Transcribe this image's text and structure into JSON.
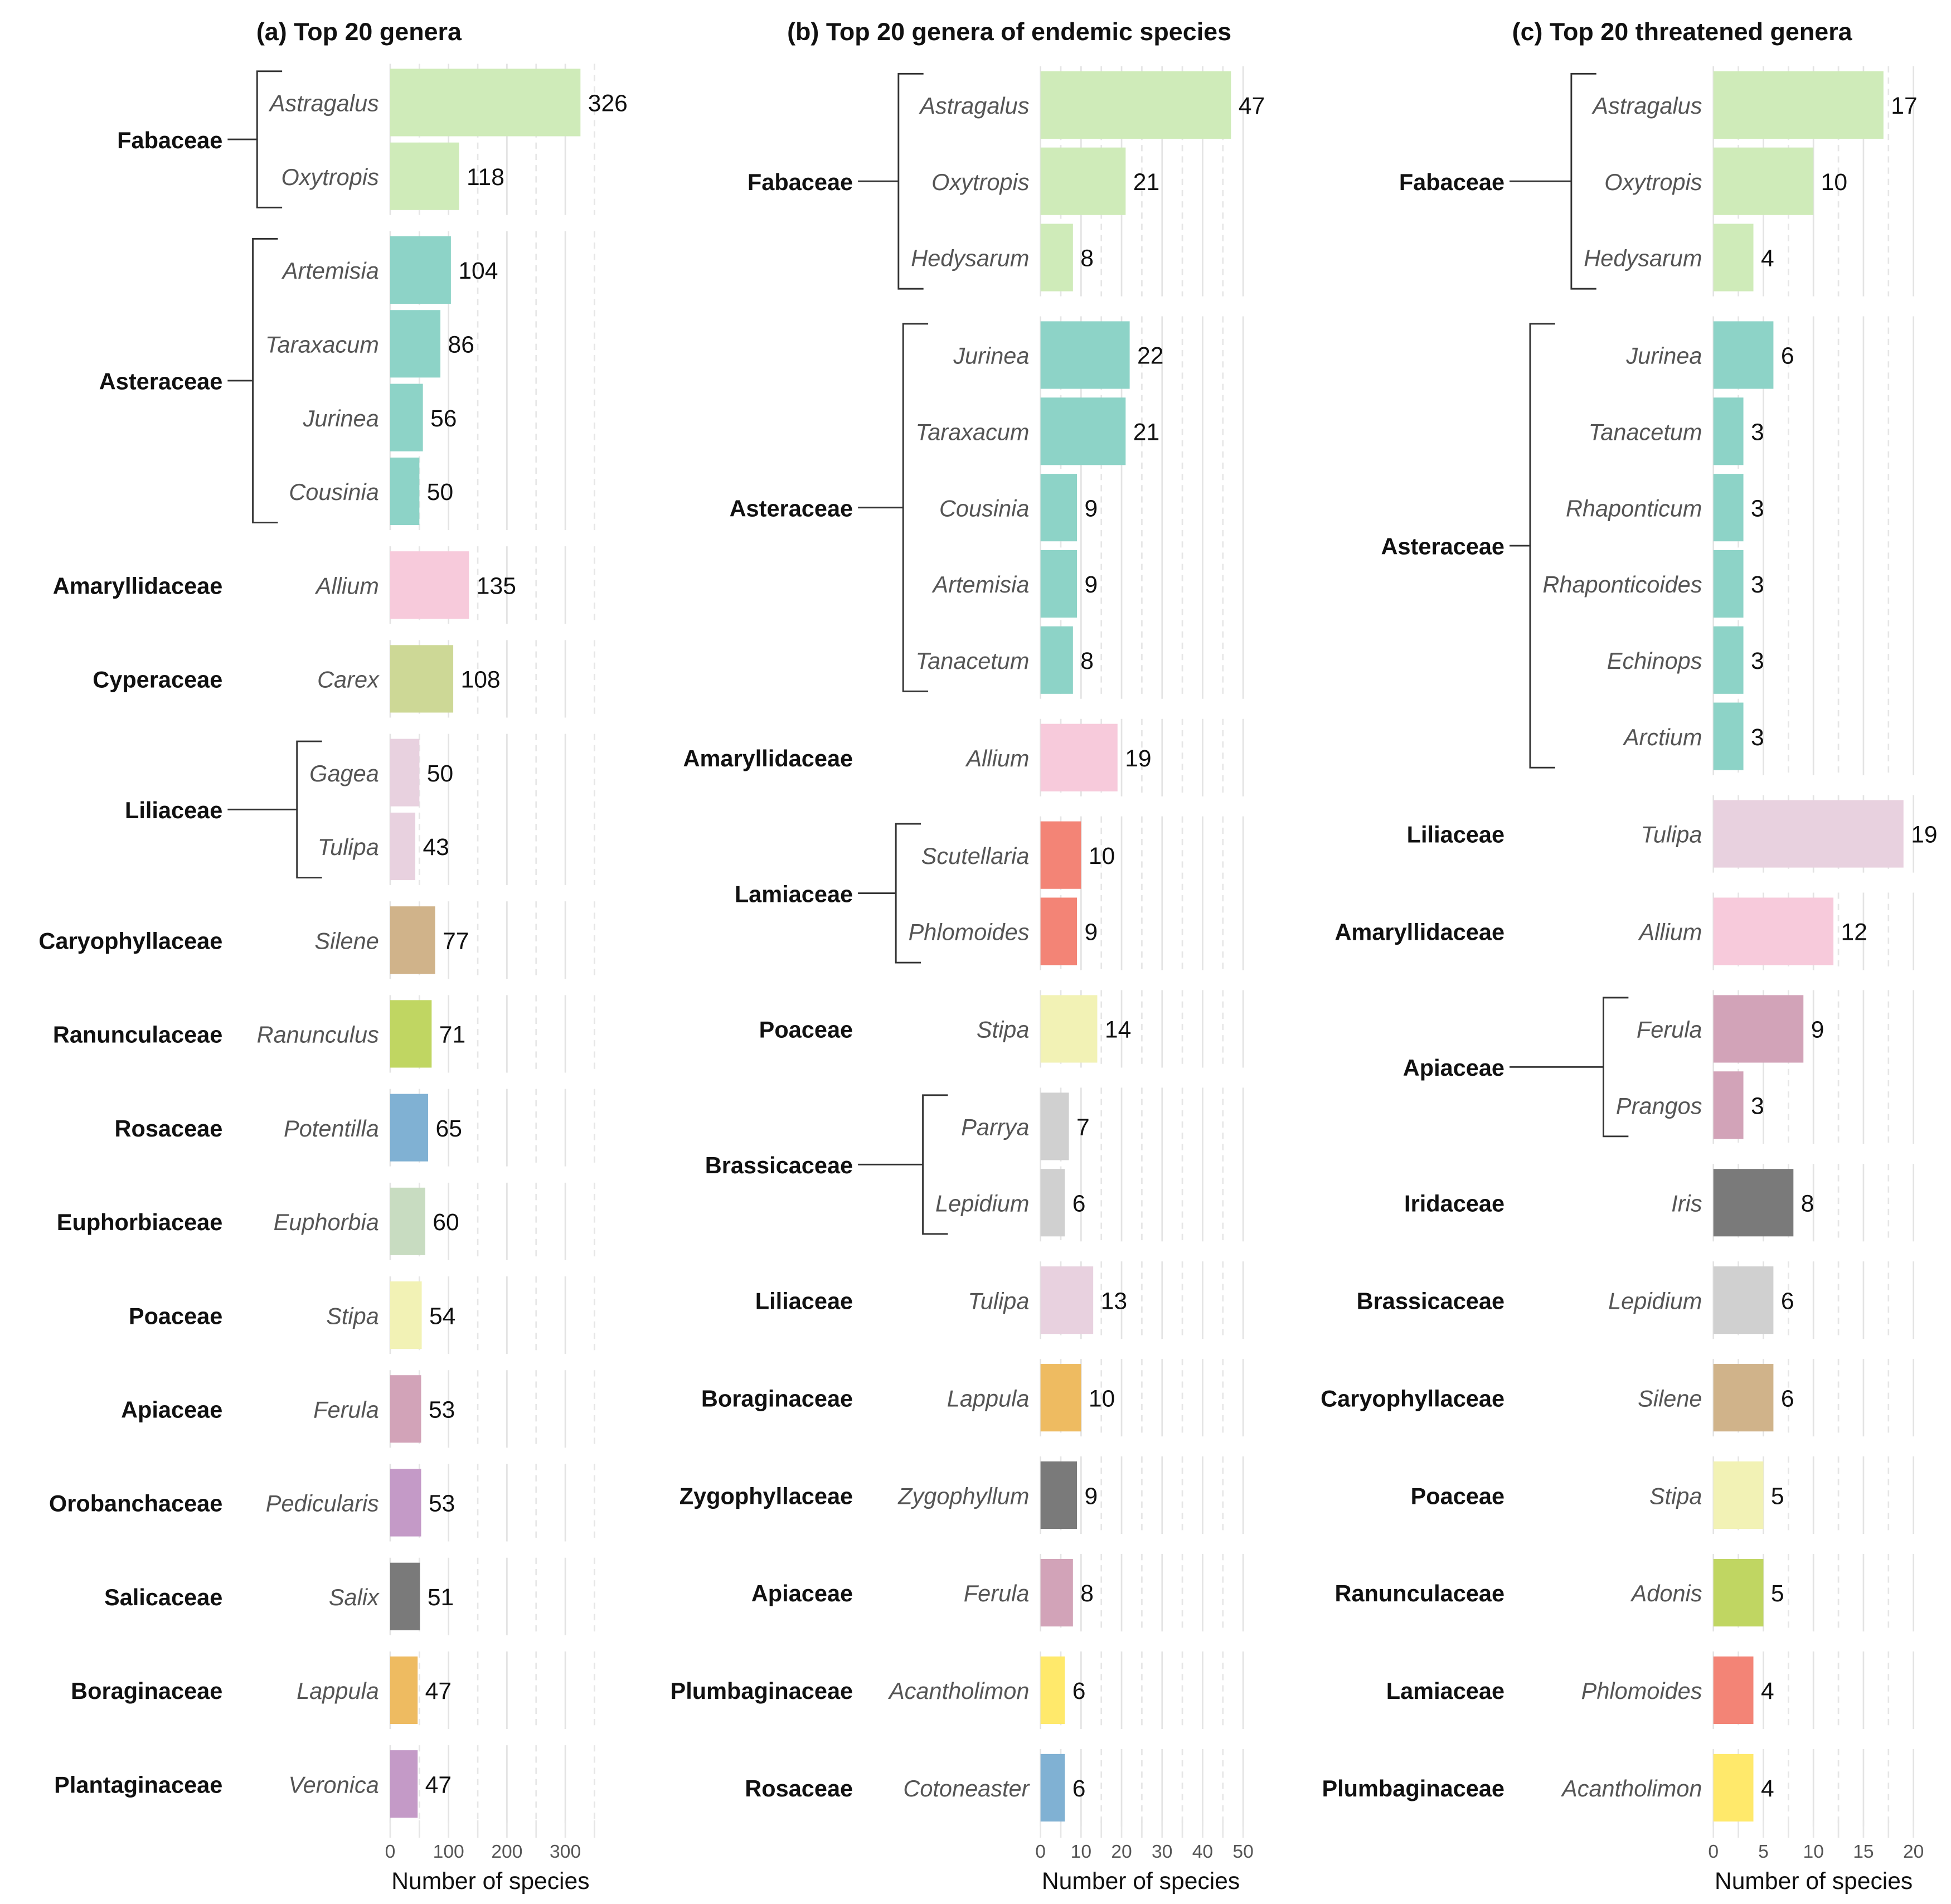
{
  "palette": {
    "Fabaceae": "#CFEBB9",
    "Asteraceae": "#8DD3C7",
    "Amaryllidaceae": "#F7CADB",
    "Cyperaceae": "#CDD896",
    "Liliaceae": "#E8D1DF",
    "Caryophyllaceae": "#D0B38A",
    "Ranunculaceae": "#C0D662",
    "Rosaceae": "#80B1D3",
    "Euphorbiaceae": "#C8DCC1",
    "Poaceae": "#F2F2B5",
    "Apiaceae": "#D2A3B8",
    "Orobanchaceae": "#C49AC7",
    "Salicaceae": "#7A7A7A",
    "Boraginaceae": "#EEBB61",
    "Plantaginaceae": "#C49AC7",
    "Lamiaceae": "#F38476",
    "Brassicaceae": "#D0D0D0",
    "Zygophyllaceae": "#7A7A7A",
    "Plumbaginaceae": "#FFE96B",
    "Iridaceae": "#7A7A7A"
  },
  "chart_data": [
    {
      "type": "bar",
      "title": "(a) Top 20 genera",
      "xlabel": "Number of species",
      "xticks": [
        0,
        100,
        200,
        300
      ],
      "minor_step": 50,
      "xlim": [
        0,
        350
      ],
      "groups": [
        {
          "family": "Fabaceae",
          "genera": [
            {
              "name": "Astragalus",
              "value": 326
            },
            {
              "name": "Oxytropis",
              "value": 118
            }
          ]
        },
        {
          "family": "Asteraceae",
          "genera": [
            {
              "name": "Artemisia",
              "value": 104
            },
            {
              "name": "Taraxacum",
              "value": 86
            },
            {
              "name": "Jurinea",
              "value": 56
            },
            {
              "name": "Cousinia",
              "value": 50
            }
          ]
        },
        {
          "family": "Amaryllidaceae",
          "genera": [
            {
              "name": "Allium",
              "value": 135
            }
          ]
        },
        {
          "family": "Cyperaceae",
          "genera": [
            {
              "name": "Carex",
              "value": 108
            }
          ]
        },
        {
          "family": "Liliaceae",
          "genera": [
            {
              "name": "Gagea",
              "value": 50
            },
            {
              "name": "Tulipa",
              "value": 43
            }
          ]
        },
        {
          "family": "Caryophyllaceae",
          "genera": [
            {
              "name": "Silene",
              "value": 77
            }
          ]
        },
        {
          "family": "Ranunculaceae",
          "genera": [
            {
              "name": "Ranunculus",
              "value": 71
            }
          ]
        },
        {
          "family": "Rosaceae",
          "genera": [
            {
              "name": "Potentilla",
              "value": 65
            }
          ]
        },
        {
          "family": "Euphorbiaceae",
          "genera": [
            {
              "name": "Euphorbia",
              "value": 60
            }
          ]
        },
        {
          "family": "Poaceae",
          "genera": [
            {
              "name": "Stipa",
              "value": 54
            }
          ]
        },
        {
          "family": "Apiaceae",
          "genera": [
            {
              "name": "Ferula",
              "value": 53
            }
          ]
        },
        {
          "family": "Orobanchaceae",
          "genera": [
            {
              "name": "Pedicularis",
              "value": 53
            }
          ]
        },
        {
          "family": "Salicaceae",
          "genera": [
            {
              "name": "Salix",
              "value": 51
            }
          ]
        },
        {
          "family": "Boraginaceae",
          "genera": [
            {
              "name": "Lappula",
              "value": 47
            }
          ]
        },
        {
          "family": "Plantaginaceae",
          "genera": [
            {
              "name": "Veronica",
              "value": 47
            }
          ]
        }
      ]
    },
    {
      "type": "bar",
      "title": "(b) Top 20 genera of endemic species",
      "xlabel": "Number of species",
      "xticks": [
        0,
        10,
        20,
        30,
        40,
        50
      ],
      "minor_step": 5,
      "xlim": [
        0,
        50
      ],
      "groups": [
        {
          "family": "Fabaceae",
          "genera": [
            {
              "name": "Astragalus",
              "value": 47
            },
            {
              "name": "Oxytropis",
              "value": 21
            },
            {
              "name": "Hedysarum",
              "value": 8
            }
          ]
        },
        {
          "family": "Asteraceae",
          "genera": [
            {
              "name": "Jurinea",
              "value": 22
            },
            {
              "name": "Taraxacum",
              "value": 21
            },
            {
              "name": "Cousinia",
              "value": 9
            },
            {
              "name": "Artemisia",
              "value": 9
            },
            {
              "name": "Tanacetum",
              "value": 8
            }
          ]
        },
        {
          "family": "Amaryllidaceae",
          "genera": [
            {
              "name": "Allium",
              "value": 19
            }
          ]
        },
        {
          "family": "Lamiaceae",
          "genera": [
            {
              "name": "Scutellaria",
              "value": 10
            },
            {
              "name": "Phlomoides",
              "value": 9
            }
          ]
        },
        {
          "family": "Poaceae",
          "genera": [
            {
              "name": "Stipa",
              "value": 14
            }
          ]
        },
        {
          "family": "Brassicaceae",
          "genera": [
            {
              "name": "Parrya",
              "value": 7
            },
            {
              "name": "Lepidium",
              "value": 6
            }
          ]
        },
        {
          "family": "Liliaceae",
          "genera": [
            {
              "name": "Tulipa",
              "value": 13
            }
          ]
        },
        {
          "family": "Boraginaceae",
          "genera": [
            {
              "name": "Lappula",
              "value": 10
            }
          ]
        },
        {
          "family": "Zygophyllaceae",
          "genera": [
            {
              "name": "Zygophyllum",
              "value": 9
            }
          ]
        },
        {
          "family": "Apiaceae",
          "genera": [
            {
              "name": "Ferula",
              "value": 8
            }
          ]
        },
        {
          "family": "Plumbaginaceae",
          "genera": [
            {
              "name": "Acantholimon",
              "value": 6
            }
          ]
        },
        {
          "family": "Rosaceae",
          "genera": [
            {
              "name": "Cotoneaster",
              "value": 6
            }
          ]
        }
      ]
    },
    {
      "type": "bar",
      "title": "(c) Top 20 threatened genera",
      "xlabel": "Number of species",
      "xticks": [
        0,
        5,
        10,
        15,
        20
      ],
      "minor_step": 2.5,
      "xlim": [
        0,
        20
      ],
      "groups": [
        {
          "family": "Fabaceae",
          "genera": [
            {
              "name": "Astragalus",
              "value": 17
            },
            {
              "name": "Oxytropis",
              "value": 10
            },
            {
              "name": "Hedysarum",
              "value": 4
            }
          ]
        },
        {
          "family": "Asteraceae",
          "genera": [
            {
              "name": "Jurinea",
              "value": 6
            },
            {
              "name": "Tanacetum",
              "value": 3
            },
            {
              "name": "Rhaponticum",
              "value": 3
            },
            {
              "name": "Rhaponticoides",
              "value": 3
            },
            {
              "name": "Echinops",
              "value": 3
            },
            {
              "name": "Arctium",
              "value": 3
            }
          ]
        },
        {
          "family": "Liliaceae",
          "genera": [
            {
              "name": "Tulipa",
              "value": 19
            }
          ]
        },
        {
          "family": "Amaryllidaceae",
          "genera": [
            {
              "name": "Allium",
              "value": 12
            }
          ]
        },
        {
          "family": "Apiaceae",
          "genera": [
            {
              "name": "Ferula",
              "value": 9
            },
            {
              "name": "Prangos",
              "value": 3
            }
          ]
        },
        {
          "family": "Iridaceae",
          "genera": [
            {
              "name": "Iris",
              "value": 8
            }
          ]
        },
        {
          "family": "Brassicaceae",
          "genera": [
            {
              "name": "Lepidium",
              "value": 6
            }
          ]
        },
        {
          "family": "Caryophyllaceae",
          "genera": [
            {
              "name": "Silene",
              "value": 6
            }
          ]
        },
        {
          "family": "Poaceae",
          "genera": [
            {
              "name": "Stipa",
              "value": 5
            }
          ]
        },
        {
          "family": "Ranunculaceae",
          "genera": [
            {
              "name": "Adonis",
              "value": 5
            }
          ]
        },
        {
          "family": "Lamiaceae",
          "genera": [
            {
              "name": "Phlomoides",
              "value": 4
            }
          ]
        },
        {
          "family": "Plumbaginaceae",
          "genera": [
            {
              "name": "Acantholimon",
              "value": 4
            }
          ]
        }
      ]
    }
  ]
}
